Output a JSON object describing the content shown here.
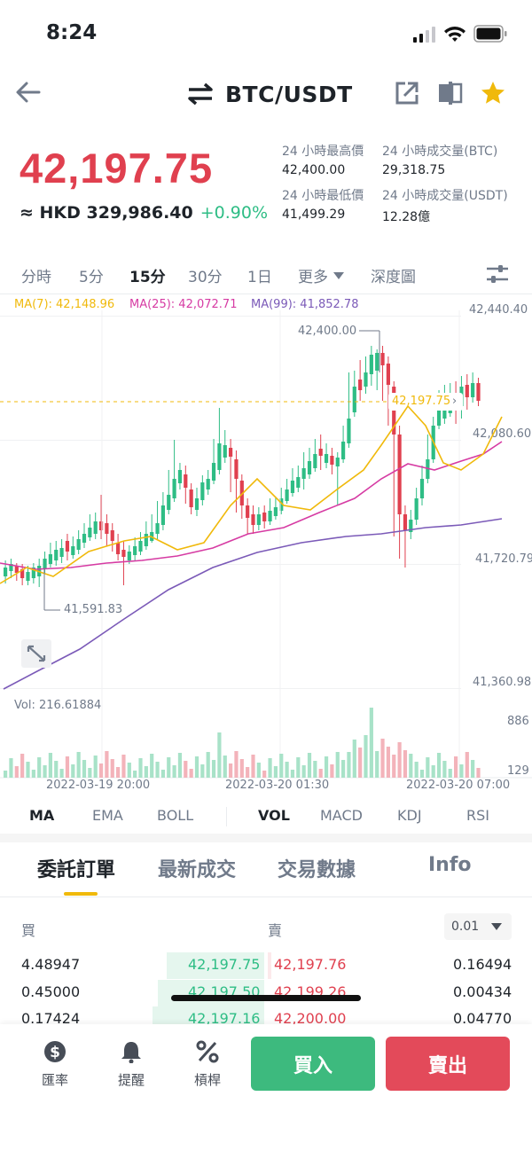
{
  "status": {
    "time": "8:24"
  },
  "header": {
    "pair": "BTC/USDT",
    "icons": [
      "back-arrow-icon",
      "swap-icon",
      "share-icon",
      "chart-layout-icon",
      "star-icon"
    ],
    "star_color": "#f0b90b"
  },
  "price": {
    "last": "42,197.75",
    "fiat": "≈ HKD 329,986.40",
    "change": "+0.90%",
    "up_color": "#2ebd85",
    "down_color": "#e0404f"
  },
  "stats": {
    "high_label": "24 小時最高價",
    "high": "42,400.00",
    "vol_btc_label": "24 小時成交量(BTC)",
    "vol_btc": "29,318.75",
    "low_label": "24 小時最低價",
    "low": "41,499.29",
    "vol_usdt_label": "24 小時成交量(USDT)",
    "vol_usdt": "12.28億"
  },
  "timeframes": {
    "items": [
      "分時",
      "5分",
      "15分",
      "30分",
      "1日"
    ],
    "active": "15分",
    "more": "更多",
    "depth": "深度圖"
  },
  "chart": {
    "ma7": "MA(7): 42,148.96",
    "ma25": "MA(25): 42,072.71",
    "ma99": "MA(99): 41,852.78",
    "ma7_color": "#f0b90b",
    "ma25_color": "#d63ba3",
    "ma99_color": "#7b5ab8",
    "y_ticks": [
      "42,440.40",
      "42,080.60",
      "41,720.79",
      "41,360.98"
    ],
    "high_marker": "42,400.00",
    "low_marker": "41,591.83",
    "current_marker": "42,197.75",
    "vol_label": "Vol: 216.61884",
    "vol_ticks": [
      "886",
      "129"
    ],
    "x_ticks": [
      "2022-03-19 20:00",
      "2022-03-20 01:30",
      "2022-03-20 07:00"
    ]
  },
  "chart_data": {
    "type": "candlestick",
    "ylim": [
      41360.98,
      42440.4
    ],
    "candles_approx_closes_trend": "rising",
    "annotations": {
      "high": 42400.0,
      "low": 41591.83,
      "last": 42197.75
    }
  },
  "indicators": {
    "main": [
      "MA",
      "EMA",
      "BOLL"
    ],
    "sub": [
      "VOL",
      "MACD",
      "KDJ",
      "RSI"
    ]
  },
  "orders": {
    "tabs": [
      "委託訂單",
      "最新成交",
      "交易數據",
      "Info"
    ],
    "buy_label": "買",
    "sell_label": "賣",
    "precision": "0.01",
    "rows": [
      {
        "bid_qty": "4.48947",
        "bid_price": "42,197.75",
        "ask_price": "42,197.76",
        "ask_qty": "0.16494"
      },
      {
        "bid_qty": "0.45000",
        "bid_price": "42,197.50",
        "ask_price": "42,199.26",
        "ask_qty": "0.00434"
      },
      {
        "bid_qty": "0.17424",
        "bid_price": "42,197.16",
        "ask_price": "42,200.00",
        "ask_qty": "0.04770"
      }
    ]
  },
  "bottom": {
    "rate": "匯率",
    "alert": "提醒",
    "leverage": "槓桿",
    "buy": "買入",
    "sell": "賣出"
  }
}
